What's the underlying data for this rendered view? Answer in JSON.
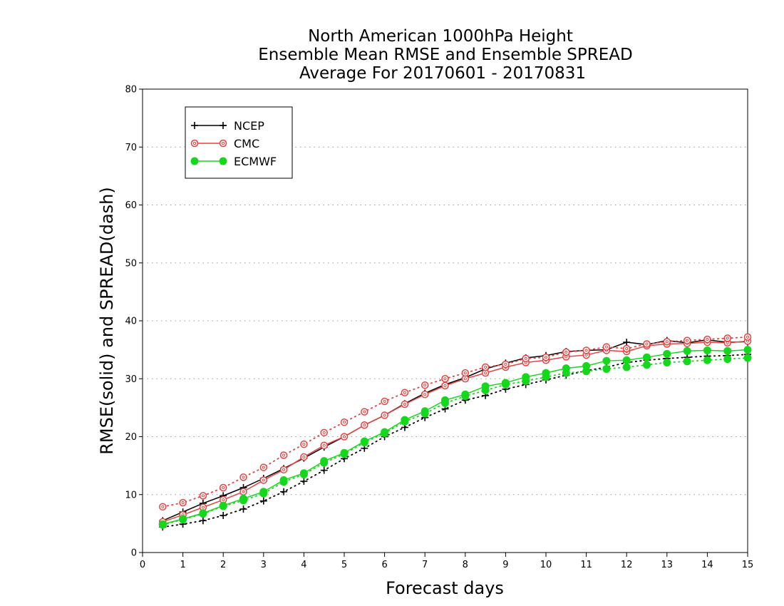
{
  "chart_data": {
    "type": "line",
    "title_lines": [
      "North American 1000hPa Height",
      "Ensemble Mean RMSE and Ensemble SPREAD",
      "Average For 20170601 - 20170831"
    ],
    "xlabel": "Forecast days",
    "ylabel": "RMSE(solid) and SPREAD(dash)",
    "xlim": [
      0,
      15
    ],
    "ylim": [
      0,
      80
    ],
    "x_ticks": [
      "0",
      "1",
      "2",
      "3",
      "4",
      "5",
      "6",
      "7",
      "8",
      "9",
      "10",
      "11",
      "12",
      "13",
      "14",
      "15"
    ],
    "y_ticks": [
      "0",
      "10",
      "20",
      "30",
      "40",
      "50",
      "60",
      "70",
      "80"
    ],
    "grid": "horizontal dotted",
    "legend_position": "top-left",
    "x": [
      0.5,
      1,
      1.5,
      2,
      2.5,
      3,
      3.5,
      4,
      4.5,
      5,
      5.5,
      6,
      6.5,
      7,
      7.5,
      8,
      8.5,
      9,
      9.5,
      10,
      10.5,
      11,
      11.5,
      12,
      12.5,
      13,
      13.5,
      14,
      14.5,
      15
    ],
    "series": [
      {
        "name": "NCEP",
        "color": "#000000",
        "marker": "plus",
        "rmse": [
          5.5,
          7.0,
          8.5,
          9.8,
          11.2,
          12.8,
          14.5,
          16.3,
          18.2,
          20.0,
          22.0,
          23.7,
          25.7,
          27.5,
          29.0,
          30.2,
          31.7,
          32.7,
          33.6,
          34.0,
          34.7,
          34.9,
          35.0,
          36.3,
          35.9,
          36.6,
          36.2,
          36.7,
          36.3,
          36.4
        ],
        "spread": [
          4.4,
          4.9,
          5.5,
          6.4,
          7.5,
          8.9,
          10.5,
          12.3,
          14.2,
          16.2,
          18.0,
          20.0,
          21.6,
          23.3,
          24.8,
          26.3,
          27.1,
          28.2,
          29.0,
          29.8,
          30.6,
          31.4,
          32.0,
          32.8,
          33.2,
          33.5,
          33.7,
          33.9,
          34.0,
          34.2
        ]
      },
      {
        "name": "CMC",
        "color": "#e8413f",
        "marker": "open-circle",
        "rmse": [
          5.3,
          6.5,
          7.8,
          9.1,
          10.5,
          12.5,
          14.3,
          16.5,
          18.5,
          20.0,
          22.0,
          23.7,
          25.6,
          27.3,
          28.8,
          30.0,
          31.0,
          32.0,
          32.8,
          33.2,
          33.8,
          34.1,
          34.9,
          34.7,
          35.7,
          36.0,
          36.1,
          36.3,
          36.2,
          36.5
        ],
        "spread": [
          7.9,
          8.6,
          9.8,
          11.2,
          13.0,
          14.7,
          16.8,
          18.7,
          20.7,
          22.5,
          24.3,
          26.1,
          27.6,
          28.9,
          30.0,
          31.0,
          32.0,
          32.5,
          33.5,
          33.7,
          34.6,
          34.9,
          35.5,
          35.2,
          36.0,
          36.4,
          36.6,
          36.8,
          37.0,
          37.2
        ]
      },
      {
        "name": "ECMWF",
        "color": "#15d81c",
        "marker": "filled-circle",
        "rmse": [
          4.9,
          5.8,
          6.8,
          8.1,
          9.3,
          10.5,
          12.5,
          13.7,
          15.8,
          17.2,
          19.2,
          20.8,
          22.9,
          24.4,
          26.3,
          27.3,
          28.7,
          29.3,
          30.3,
          31.0,
          31.8,
          32.2,
          33.1,
          33.2,
          33.7,
          34.3,
          34.8,
          34.9,
          34.8,
          35.0
        ],
        "spread": [
          4.8,
          5.7,
          6.7,
          8.0,
          9.0,
          10.2,
          12.2,
          13.5,
          15.5,
          17.0,
          19.0,
          20.6,
          22.6,
          24.0,
          25.8,
          27.0,
          28.0,
          29.0,
          29.6,
          30.3,
          31.0,
          31.3,
          31.7,
          32.0,
          32.4,
          32.8,
          33.0,
          33.2,
          33.4,
          33.6
        ]
      }
    ]
  }
}
